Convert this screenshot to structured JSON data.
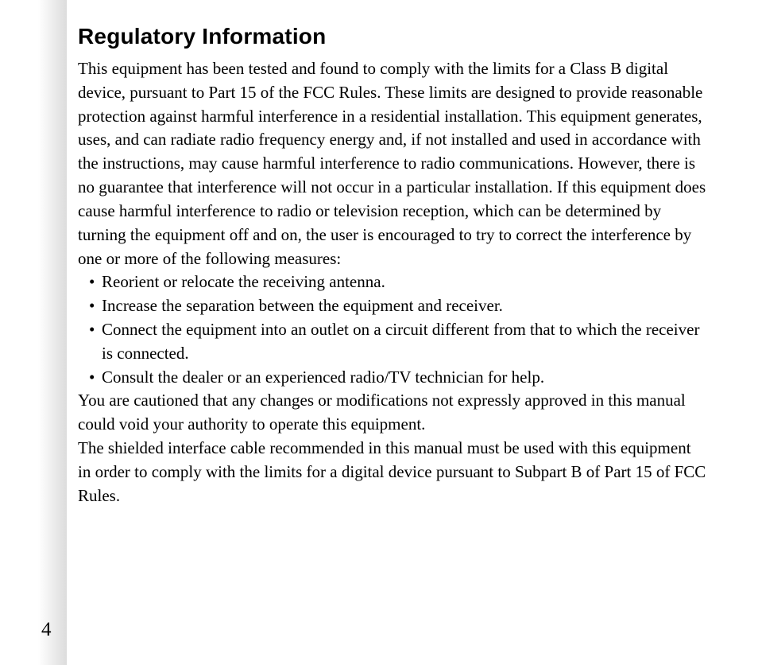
{
  "page": {
    "number": "4",
    "background_color": "#ffffff",
    "gutter_gradient_start": "#ffffff",
    "gutter_gradient_end": "#dcdcdc"
  },
  "heading": {
    "text": "Regulatory Information",
    "font_family": "Arial",
    "font_weight": 900,
    "font_size_pt": 21,
    "color": "#000000"
  },
  "body": {
    "font_family": "Times New Roman",
    "font_size_pt": 16,
    "color": "#000000",
    "paragraphs": {
      "intro": "This equipment has been tested and found to comply with the limits for a Class B digital device, pursuant to Part 15 of the FCC Rules.  These limits are designed to provide reasonable protection against harmful interference in a residential installation.  This equipment generates, uses, and can radiate  radio frequency energy and, if not installed and used in accordance with the instructions, may cause harmful interference to radio communications.  However, there is no guarantee that interference will not occur in a particular installation.  If this equipment does cause harmful interference to radio or television reception, which can be determined by turning the equipment off and on, the user is encouraged to try to correct the interference by one or more of the following measures:",
      "caution": "You are cautioned that any changes or modifications not expressly approved in this manual could void your authority to operate this equipment.",
      "shielded": "The shielded interface cable recommended in this manual must be used with this equipment in order to comply with the limits for a digital device pursuant to Subpart B of Part 15 of FCC Rules."
    },
    "bullets": [
      "Reorient or relocate the receiving antenna.",
      "Increase the separation between the equipment and receiver.",
      "Connect the equipment into an outlet on a circuit different from that to which the receiver is connected.",
      "Consult the dealer or an experienced radio/TV technician for help."
    ]
  }
}
